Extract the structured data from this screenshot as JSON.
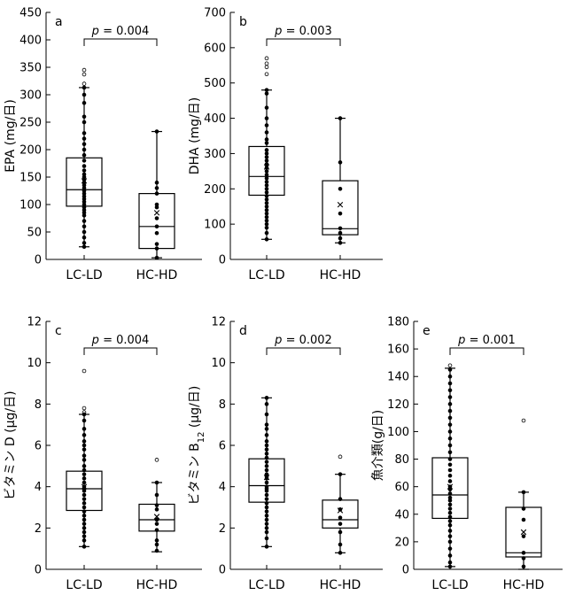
{
  "chart_data": [
    {
      "type": "box",
      "panel": "a",
      "ylabel": "EPA (mg/日)",
      "ylim": [
        0,
        450
      ],
      "yticks": [
        0,
        50,
        100,
        150,
        200,
        250,
        300,
        350,
        400,
        450
      ],
      "categories": [
        "LC-LD",
        "HC-HD"
      ],
      "boxes": [
        {
          "min": 23,
          "q1": 97,
          "median": 127,
          "q3": 185,
          "max": 313,
          "mean": 143,
          "points": [
            345,
            337,
            320,
            313,
            300,
            285,
            260,
            250,
            230,
            220,
            210,
            200,
            190,
            180,
            170,
            162,
            155,
            150,
            145,
            140,
            135,
            130,
            125,
            120,
            115,
            110,
            105,
            100,
            95,
            90,
            85,
            80,
            70,
            60,
            50,
            40,
            30,
            23
          ]
        },
        {
          "min": 3,
          "q1": 20,
          "median": 60,
          "q3": 120,
          "max": 233,
          "mean": 85,
          "points": [
            233,
            140,
            130,
            120,
            100,
            95,
            75,
            60,
            48,
            28,
            20,
            3
          ]
        }
      ],
      "annotation": {
        "text_prefix": "p",
        "text_value": " = 0.004"
      }
    },
    {
      "type": "box",
      "panel": "b",
      "ylabel": "DHA (mg/日)",
      "ylim": [
        0,
        700
      ],
      "yticks": [
        0,
        100,
        200,
        300,
        400,
        500,
        600,
        700
      ],
      "categories": [
        "LC-LD",
        "HC-HD"
      ],
      "boxes": [
        {
          "min": 57,
          "q1": 182,
          "median": 235,
          "q3": 320,
          "max": 480,
          "mean": 262,
          "points": [
            570,
            555,
            545,
            525,
            480,
            470,
            430,
            400,
            380,
            360,
            340,
            330,
            310,
            300,
            290,
            280,
            270,
            260,
            250,
            240,
            230,
            220,
            210,
            200,
            190,
            180,
            170,
            160,
            150,
            140,
            130,
            120,
            110,
            100,
            90,
            75,
            57
          ]
        },
        {
          "min": 47,
          "q1": 70,
          "median": 87,
          "q3": 223,
          "max": 400,
          "mean": 155,
          "points": [
            400,
            275,
            200,
            130,
            88,
            75,
            60,
            47
          ]
        }
      ],
      "annotation": {
        "text_prefix": "p",
        "text_value": " = 0.003"
      }
    },
    {
      "type": "box",
      "panel": "c",
      "ylabel": "ビタミン D (μg/日)",
      "ylim": [
        0,
        12
      ],
      "yticks": [
        0,
        2,
        4,
        6,
        8,
        10,
        12
      ],
      "categories": [
        "LC-LD",
        "HC-HD"
      ],
      "boxes": [
        {
          "min": 1.1,
          "q1": 2.85,
          "median": 3.9,
          "q3": 4.75,
          "max": 7.5,
          "mean": 4.0,
          "points": [
            9.6,
            7.8,
            7.6,
            7.5,
            7.2,
            6.8,
            6.5,
            6.2,
            6.0,
            5.8,
            5.5,
            5.3,
            5.0,
            4.8,
            4.6,
            4.4,
            4.2,
            4.0,
            3.9,
            3.8,
            3.6,
            3.4,
            3.2,
            3.0,
            2.8,
            2.6,
            2.4,
            2.2,
            2.0,
            1.8,
            1.6,
            1.4,
            1.1
          ]
        },
        {
          "min": 0.85,
          "q1": 1.85,
          "median": 2.4,
          "q3": 3.15,
          "max": 4.2,
          "mean": 2.55,
          "points": [
            5.3,
            4.2,
            3.6,
            3.1,
            2.9,
            2.4,
            2.2,
            1.9,
            1.4,
            1.2,
            0.9
          ]
        }
      ],
      "annotation": {
        "text_prefix": "p",
        "text_value": " = 0.004"
      }
    },
    {
      "type": "box",
      "panel": "d",
      "ylabel": "ビタミン B12 (μg/日)",
      "ylabel_parts": {
        "before": "ビタミン B",
        "sub": "12",
        "after": " (μg/日)"
      },
      "ylim": [
        0,
        12
      ],
      "yticks": [
        0,
        2,
        4,
        6,
        8,
        10,
        12
      ],
      "categories": [
        "LC-LD",
        "HC-HD"
      ],
      "boxes": [
        {
          "min": 1.1,
          "q1": 3.25,
          "median": 4.05,
          "q3": 5.35,
          "max": 8.3,
          "mean": 4.45,
          "points": [
            8.3,
            8.0,
            7.5,
            7.0,
            6.8,
            6.5,
            6.2,
            6.0,
            5.8,
            5.6,
            5.4,
            5.2,
            5.0,
            4.8,
            4.6,
            4.5,
            4.4,
            4.2,
            4.0,
            3.9,
            3.8,
            3.6,
            3.4,
            3.2,
            3.0,
            2.8,
            2.6,
            2.4,
            2.2,
            2.0,
            1.8,
            1.5,
            1.1
          ]
        },
        {
          "min": 0.8,
          "q1": 2.0,
          "median": 2.4,
          "q3": 3.35,
          "max": 4.6,
          "mean": 2.85,
          "points": [
            5.45,
            4.6,
            3.4,
            2.9,
            2.5,
            2.2,
            1.8,
            1.2,
            0.8
          ]
        }
      ],
      "annotation": {
        "text_prefix": "p",
        "text_value": " = 0.002"
      }
    },
    {
      "type": "box",
      "panel": "e",
      "ylabel": "魚介類(g/日)",
      "ylim": [
        0,
        180
      ],
      "yticks": [
        0,
        20,
        40,
        60,
        80,
        100,
        120,
        140,
        160,
        180
      ],
      "categories": [
        "LC-LD",
        "HC-HD"
      ],
      "boxes": [
        {
          "min": 2,
          "q1": 37,
          "median": 54,
          "q3": 81,
          "max": 146,
          "mean": 60,
          "points": [
            148,
            145,
            140,
            135,
            130,
            125,
            120,
            115,
            110,
            105,
            100,
            95,
            90,
            85,
            80,
            76,
            72,
            68,
            64,
            60,
            58,
            55,
            52,
            50,
            47,
            44,
            41,
            38,
            35,
            32,
            28,
            24,
            20,
            15,
            10,
            5,
            2
          ]
        },
        {
          "min": 0,
          "q1": 9,
          "median": 12,
          "q3": 45,
          "max": 56,
          "mean": 27,
          "points": [
            108,
            56,
            44,
            36,
            24,
            12,
            8,
            2
          ]
        }
      ],
      "annotation": {
        "text_prefix": "p",
        "text_value": " = 0.001"
      }
    }
  ]
}
